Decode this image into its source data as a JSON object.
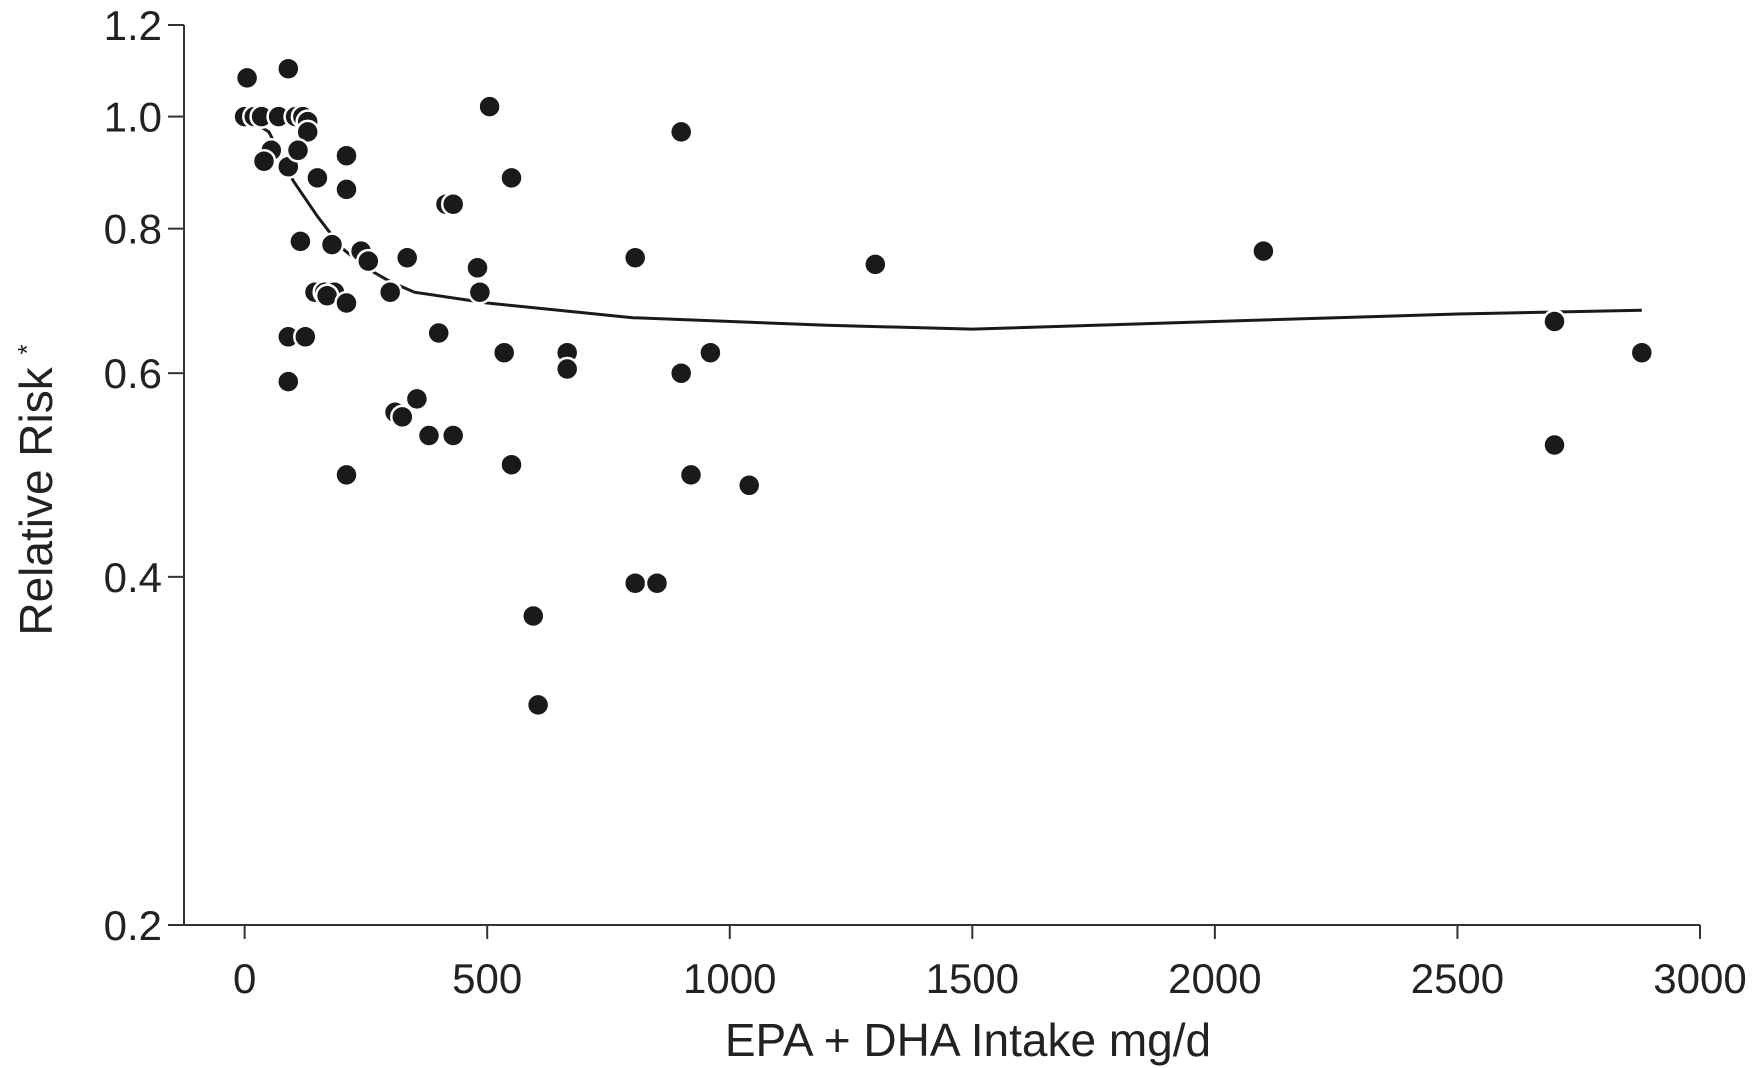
{
  "chart_data": {
    "type": "scatter",
    "xlabel": "EPA + DHA Intake mg/d",
    "ylabel": "Relative Risk",
    "ylabel_superscript": "*",
    "y_scale": "log",
    "xlim": [
      -125,
      3000
    ],
    "ylim": [
      0.2,
      1.2
    ],
    "x_ticks": [
      0,
      500,
      1000,
      1500,
      2000,
      2500,
      3000
    ],
    "x_tick_labels": [
      "0",
      "500",
      "1000",
      "1500",
      "2000",
      "2500",
      "3000"
    ],
    "y_ticks": [
      0.2,
      0.4,
      0.6,
      0.8,
      1.0,
      1.2
    ],
    "y_tick_labels": [
      "0.2",
      "0.4",
      "0.6",
      "0.8",
      "1.0",
      "1.2"
    ],
    "grid": false,
    "legend": "none",
    "point_color": "#1a1a1a",
    "line_color": "#1a1a1a",
    "points": [
      {
        "x": 5,
        "y": 1.08
      },
      {
        "x": 90,
        "y": 1.1
      },
      {
        "x": 0,
        "y": 1.0
      },
      {
        "x": 20,
        "y": 1.0
      },
      {
        "x": 35,
        "y": 1.0
      },
      {
        "x": 70,
        "y": 1.0
      },
      {
        "x": 105,
        "y": 1.0
      },
      {
        "x": 120,
        "y": 1.0
      },
      {
        "x": 130,
        "y": 0.99
      },
      {
        "x": 130,
        "y": 0.97
      },
      {
        "x": 55,
        "y": 0.935
      },
      {
        "x": 40,
        "y": 0.915
      },
      {
        "x": 90,
        "y": 0.905
      },
      {
        "x": 110,
        "y": 0.935
      },
      {
        "x": 150,
        "y": 0.885
      },
      {
        "x": 210,
        "y": 0.925
      },
      {
        "x": 210,
        "y": 0.865
      },
      {
        "x": 115,
        "y": 0.78
      },
      {
        "x": 180,
        "y": 0.775
      },
      {
        "x": 240,
        "y": 0.765
      },
      {
        "x": 255,
        "y": 0.75
      },
      {
        "x": 335,
        "y": 0.755
      },
      {
        "x": 145,
        "y": 0.705
      },
      {
        "x": 165,
        "y": 0.705
      },
      {
        "x": 185,
        "y": 0.705
      },
      {
        "x": 170,
        "y": 0.7
      },
      {
        "x": 210,
        "y": 0.69
      },
      {
        "x": 300,
        "y": 0.705
      },
      {
        "x": 90,
        "y": 0.645
      },
      {
        "x": 125,
        "y": 0.645
      },
      {
        "x": 90,
        "y": 0.59
      },
      {
        "x": 210,
        "y": 0.49
      },
      {
        "x": 310,
        "y": 0.555
      },
      {
        "x": 325,
        "y": 0.55
      },
      {
        "x": 355,
        "y": 0.57
      },
      {
        "x": 380,
        "y": 0.53
      },
      {
        "x": 400,
        "y": 0.65
      },
      {
        "x": 415,
        "y": 0.84
      },
      {
        "x": 430,
        "y": 0.84
      },
      {
        "x": 430,
        "y": 0.53
      },
      {
        "x": 480,
        "y": 0.74
      },
      {
        "x": 485,
        "y": 0.705
      },
      {
        "x": 505,
        "y": 1.02
      },
      {
        "x": 535,
        "y": 0.625
      },
      {
        "x": 550,
        "y": 0.885
      },
      {
        "x": 550,
        "y": 0.5
      },
      {
        "x": 595,
        "y": 0.37
      },
      {
        "x": 605,
        "y": 0.31
      },
      {
        "x": 665,
        "y": 0.625
      },
      {
        "x": 665,
        "y": 0.605
      },
      {
        "x": 805,
        "y": 0.755
      },
      {
        "x": 805,
        "y": 0.395
      },
      {
        "x": 850,
        "y": 0.395
      },
      {
        "x": 900,
        "y": 0.97
      },
      {
        "x": 900,
        "y": 0.6
      },
      {
        "x": 920,
        "y": 0.49
      },
      {
        "x": 960,
        "y": 0.625
      },
      {
        "x": 1040,
        "y": 0.48
      },
      {
        "x": 1300,
        "y": 0.745
      },
      {
        "x": 2100,
        "y": 0.765
      },
      {
        "x": 2700,
        "y": 0.665
      },
      {
        "x": 2700,
        "y": 0.52
      },
      {
        "x": 2880,
        "y": 0.625
      }
    ],
    "fit_line": [
      {
        "x": 0,
        "y": 1.0
      },
      {
        "x": 50,
        "y": 0.97
      },
      {
        "x": 100,
        "y": 0.88
      },
      {
        "x": 150,
        "y": 0.82
      },
      {
        "x": 200,
        "y": 0.77
      },
      {
        "x": 250,
        "y": 0.74
      },
      {
        "x": 300,
        "y": 0.72
      },
      {
        "x": 350,
        "y": 0.705
      },
      {
        "x": 500,
        "y": 0.69
      },
      {
        "x": 800,
        "y": 0.67
      },
      {
        "x": 1200,
        "y": 0.66
      },
      {
        "x": 1500,
        "y": 0.655
      },
      {
        "x": 2000,
        "y": 0.665
      },
      {
        "x": 2500,
        "y": 0.675
      },
      {
        "x": 2880,
        "y": 0.68
      }
    ]
  }
}
